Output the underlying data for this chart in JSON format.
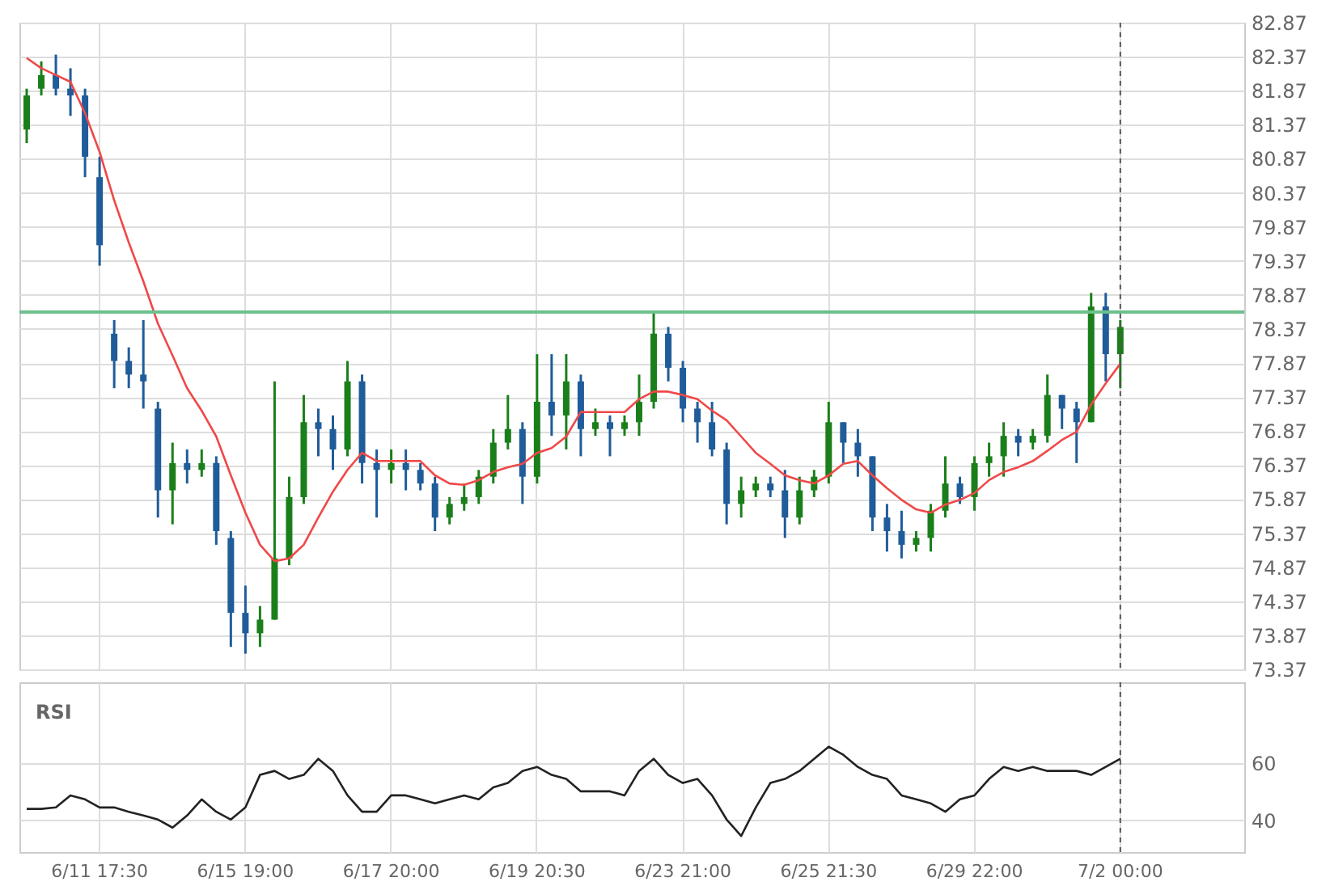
{
  "chart_data": [
    {
      "type": "candlestick",
      "categories": [
        null,
        null,
        null,
        null,
        null,
        "6/11 17:30",
        null,
        null,
        null,
        null,
        null,
        null,
        null,
        null,
        null,
        "6/15 19:00",
        null,
        null,
        null,
        null,
        null,
        null,
        null,
        null,
        null,
        "6/17 20:00",
        null,
        null,
        null,
        null,
        null,
        null,
        null,
        null,
        null,
        "6/19 20:30",
        null,
        null,
        null,
        null,
        null,
        null,
        null,
        null,
        null,
        "6/23 21:00",
        null,
        null,
        null,
        null,
        null,
        null,
        null,
        null,
        null,
        "6/25 21:30",
        null,
        null,
        null,
        null,
        null,
        null,
        null,
        null,
        null,
        "6/29 22:00",
        null,
        null,
        null,
        null,
        null,
        null,
        null,
        null,
        null,
        "7/2 00:00",
        null,
        null,
        null,
        null,
        null,
        null,
        null,
        null
      ],
      "ohlc": [
        [
          81.3,
          81.9,
          81.1,
          81.8
        ],
        [
          81.9,
          82.3,
          81.8,
          82.1
        ],
        [
          82.1,
          82.4,
          81.8,
          81.9
        ],
        [
          81.9,
          82.2,
          81.5,
          81.8
        ],
        [
          81.8,
          81.9,
          80.6,
          80.9
        ],
        [
          80.6,
          80.9,
          79.3,
          79.6
        ],
        [
          78.3,
          78.5,
          77.5,
          77.9
        ],
        [
          77.9,
          78.1,
          77.5,
          77.7
        ],
        [
          77.7,
          78.5,
          77.2,
          77.6
        ],
        [
          77.2,
          77.3,
          75.6,
          76.0
        ],
        [
          76.0,
          76.7,
          75.5,
          76.4
        ],
        [
          76.4,
          76.6,
          76.1,
          76.3
        ],
        [
          76.3,
          76.6,
          76.2,
          76.4
        ],
        [
          76.4,
          76.5,
          75.2,
          75.4
        ],
        [
          75.3,
          75.4,
          73.7,
          74.2
        ],
        [
          74.2,
          74.6,
          73.6,
          73.9
        ],
        [
          73.9,
          74.3,
          73.7,
          74.1
        ],
        [
          74.1,
          77.6,
          74.1,
          75.0
        ],
        [
          75.0,
          76.2,
          74.9,
          75.9
        ],
        [
          75.9,
          77.4,
          75.8,
          77.0
        ],
        [
          77.0,
          77.2,
          76.5,
          76.9
        ],
        [
          76.9,
          77.1,
          76.3,
          76.6
        ],
        [
          76.6,
          77.9,
          76.5,
          77.6
        ],
        [
          77.6,
          77.7,
          76.1,
          76.4
        ],
        [
          76.4,
          76.6,
          75.6,
          76.3
        ],
        [
          76.3,
          76.6,
          76.1,
          76.4
        ],
        [
          76.4,
          76.6,
          76.0,
          76.3
        ],
        [
          76.3,
          76.4,
          76.0,
          76.1
        ],
        [
          76.1,
          76.2,
          75.4,
          75.6
        ],
        [
          75.6,
          75.9,
          75.5,
          75.8
        ],
        [
          75.8,
          76.1,
          75.7,
          75.9
        ],
        [
          75.9,
          76.3,
          75.8,
          76.2
        ],
        [
          76.2,
          76.9,
          76.1,
          76.7
        ],
        [
          76.7,
          77.4,
          76.6,
          76.9
        ],
        [
          76.9,
          77.0,
          75.8,
          76.2
        ],
        [
          76.2,
          78.0,
          76.1,
          77.3
        ],
        [
          77.3,
          78.0,
          76.8,
          77.1
        ],
        [
          77.1,
          78.0,
          76.6,
          77.6
        ],
        [
          77.6,
          77.7,
          76.5,
          76.9
        ],
        [
          76.9,
          77.2,
          76.8,
          77.0
        ],
        [
          77.0,
          77.1,
          76.5,
          76.9
        ],
        [
          76.9,
          77.1,
          76.8,
          77.0
        ],
        [
          77.0,
          77.7,
          76.8,
          77.3
        ],
        [
          77.3,
          78.6,
          77.2,
          78.3
        ],
        [
          78.3,
          78.4,
          77.6,
          77.8
        ],
        [
          77.8,
          77.9,
          77.0,
          77.2
        ],
        [
          77.2,
          77.3,
          76.7,
          77.0
        ],
        [
          77.0,
          77.3,
          76.5,
          76.6
        ],
        [
          76.6,
          76.7,
          75.5,
          75.8
        ],
        [
          75.8,
          76.2,
          75.6,
          76.0
        ],
        [
          76.0,
          76.2,
          75.9,
          76.1
        ],
        [
          76.1,
          76.2,
          75.9,
          76.0
        ],
        [
          76.0,
          76.3,
          75.3,
          75.6
        ],
        [
          75.6,
          76.2,
          75.5,
          76.0
        ],
        [
          76.0,
          76.3,
          75.9,
          76.2
        ],
        [
          76.2,
          77.3,
          76.1,
          77.0
        ],
        [
          77.0,
          77.0,
          76.4,
          76.7
        ],
        [
          76.7,
          76.9,
          76.2,
          76.5
        ],
        [
          76.5,
          76.5,
          75.4,
          75.6
        ],
        [
          75.6,
          75.8,
          75.1,
          75.4
        ],
        [
          75.4,
          75.7,
          75.0,
          75.2
        ],
        [
          75.2,
          75.4,
          75.1,
          75.3
        ],
        [
          75.3,
          75.8,
          75.1,
          75.7
        ],
        [
          75.7,
          76.5,
          75.6,
          76.1
        ],
        [
          76.1,
          76.2,
          75.8,
          75.9
        ],
        [
          75.9,
          76.5,
          75.7,
          76.4
        ],
        [
          76.4,
          76.7,
          76.2,
          76.5
        ],
        [
          76.5,
          77.0,
          76.2,
          76.8
        ],
        [
          76.8,
          76.9,
          76.5,
          76.7
        ],
        [
          76.7,
          76.9,
          76.6,
          76.8
        ],
        [
          76.8,
          77.7,
          76.7,
          77.4
        ],
        [
          77.4,
          77.4,
          76.9,
          77.2
        ],
        [
          77.2,
          77.3,
          76.4,
          77.0
        ],
        [
          77.0,
          78.9,
          77.0,
          78.7
        ],
        [
          78.7,
          78.9,
          77.6,
          78.0
        ],
        [
          78.0,
          78.5,
          77.5,
          78.4
        ],
        null,
        null,
        null,
        null,
        null,
        null,
        null,
        null
      ],
      "colors": [
        "#1a7f1a",
        "#1a7f1a",
        "#1f5c99",
        "#1f5c99",
        "#1f5c99",
        "#1f5c99",
        "#1f5c99",
        "#1f5c99",
        "#1f5c99",
        "#1f5c99",
        "#1a7f1a",
        "#1f5c99",
        "#1a7f1a",
        "#1f5c99",
        "#1f5c99",
        "#1f5c99",
        "#1a7f1a",
        "#1a7f1a",
        "#1a7f1a",
        "#1a7f1a",
        "#1f5c99",
        "#1f5c99",
        "#1a7f1a",
        "#1f5c99",
        "#1f5c99",
        "#1a7f1a",
        "#1f5c99",
        "#1f5c99",
        "#1f5c99",
        "#1a7f1a",
        "#1a7f1a",
        "#1a7f1a",
        "#1a7f1a",
        "#1a7f1a",
        "#1f5c99",
        "#1a7f1a",
        "#1f5c99",
        "#1a7f1a",
        "#1f5c99",
        "#1a7f1a",
        "#1f5c99",
        "#1a7f1a",
        "#1a7f1a",
        "#1a7f1a",
        "#1f5c99",
        "#1f5c99",
        "#1f5c99",
        "#1f5c99",
        "#1f5c99",
        "#1a7f1a",
        "#1a7f1a",
        "#1f5c99",
        "#1f5c99",
        "#1a7f1a",
        "#1a7f1a",
        "#1a7f1a",
        "#1f5c99",
        "#1f5c99",
        "#1f5c99",
        "#1f5c99",
        "#1f5c99",
        "#1a7f1a",
        "#1a7f1a",
        "#1a7f1a",
        "#1f5c99",
        "#1a7f1a",
        "#1a7f1a",
        "#1a7f1a",
        "#1f5c99",
        "#1a7f1a",
        "#1a7f1a",
        "#1f5c99",
        "#1f5c99",
        "#1a7f1a",
        "#1f5c99",
        "#1a7f1a",
        null,
        null,
        null,
        null,
        null,
        null,
        null,
        null
      ],
      "series": [
        {
          "type": "line",
          "color": "#f04848",
          "values": [
            82.35,
            82.2,
            82.1,
            82.0,
            81.54,
            80.97,
            80.26,
            79.64,
            79.07,
            78.45,
            77.98,
            77.5,
            77.17,
            76.79,
            76.22,
            75.67,
            75.2,
            74.96,
            75.0,
            75.2,
            75.6,
            75.98,
            76.3,
            76.55,
            76.43,
            76.43,
            76.43,
            76.43,
            76.22,
            76.1,
            76.08,
            76.15,
            76.27,
            76.34,
            76.39,
            76.55,
            76.62,
            76.79,
            77.15,
            77.15,
            77.15,
            77.15,
            77.34,
            77.45,
            77.45,
            77.4,
            77.34,
            77.17,
            77.03,
            76.79,
            76.55,
            76.39,
            76.22,
            76.15,
            76.1,
            76.22,
            76.39,
            76.43,
            76.22,
            76.03,
            75.86,
            75.72,
            75.67,
            75.79,
            75.86,
            75.96,
            76.15,
            76.27,
            76.34,
            76.43,
            76.58,
            76.74,
            76.86,
            77.26,
            77.57,
            77.86,
            null,
            null,
            null,
            null,
            null,
            null,
            null,
            null
          ]
        }
      ],
      "ylim": [
        73.37,
        82.87
      ],
      "yticks": [
        73.37,
        73.87,
        74.37,
        74.87,
        75.37,
        75.87,
        76.37,
        76.87,
        77.37,
        77.87,
        78.37,
        78.87,
        79.37,
        79.87,
        80.37,
        80.87,
        81.37,
        81.87,
        82.37,
        82.87
      ],
      "ref_lines": [
        {
          "axis": "y",
          "value": 78.62,
          "color": "#6cc08c"
        },
        {
          "axis": "x",
          "value": "7/2 00:00",
          "color": "#555555",
          "line_style": "dashed"
        }
      ],
      "grid": true,
      "legend": false,
      "tick_labels": "y"
    },
    {
      "type": "line",
      "title": "RSI",
      "categories": [
        null,
        null,
        null,
        null,
        null,
        "6/11 17:30",
        null,
        null,
        null,
        null,
        null,
        null,
        null,
        null,
        null,
        "6/15 19:00",
        null,
        null,
        null,
        null,
        null,
        null,
        null,
        null,
        null,
        "6/17 20:00",
        null,
        null,
        null,
        null,
        null,
        null,
        null,
        null,
        null,
        "6/19 20:30",
        null,
        null,
        null,
        null,
        null,
        null,
        null,
        null,
        null,
        "6/23 21:00",
        null,
        null,
        null,
        null,
        null,
        null,
        null,
        null,
        null,
        "6/25 21:30",
        null,
        null,
        null,
        null,
        null,
        null,
        null,
        null,
        null,
        "6/29 22:00",
        null,
        null,
        null,
        null,
        null,
        null,
        null,
        null,
        null,
        "7/2 00:00",
        null,
        null,
        null,
        null,
        null,
        null,
        null,
        null
      ],
      "series": [
        {
          "color": "#222222",
          "values": [
            44,
            44,
            44.5,
            48.7,
            47.3,
            44.5,
            44.5,
            43,
            41.7,
            40.3,
            37.5,
            41.7,
            47.3,
            43,
            40.3,
            44.5,
            55.8,
            57.2,
            54.4,
            55.8,
            61.4,
            57.2,
            48.7,
            43,
            43,
            48.7,
            48.7,
            47.3,
            45.9,
            47.3,
            48.7,
            47.3,
            51.5,
            53,
            57.2,
            58.6,
            55.8,
            54.4,
            50.1,
            50.1,
            50.1,
            48.7,
            57.2,
            61.4,
            55.8,
            53,
            54.4,
            48.7,
            40.3,
            34.6,
            44.5,
            53,
            54.4,
            57.2,
            61.4,
            65.6,
            62.8,
            58.6,
            55.8,
            54.4,
            48.7,
            47.3,
            45.9,
            43,
            47.3,
            48.7,
            54.4,
            58.6,
            57.2,
            58.6,
            57.2,
            57.2,
            57.2,
            55.8,
            58.6,
            61.4,
            null,
            null,
            null,
            null,
            null,
            null,
            null,
            null
          ]
        }
      ],
      "ylim": [
        29,
        88
      ],
      "yticks": [
        40,
        60
      ],
      "ref_lines": [
        {
          "axis": "x",
          "value": "7/2 00:00",
          "color": "#555555",
          "line_style": "dashed"
        }
      ],
      "grid": true,
      "legend": false
    }
  ]
}
